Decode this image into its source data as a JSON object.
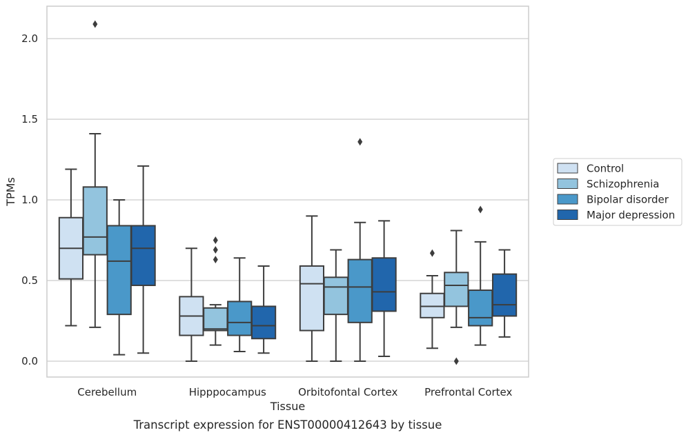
{
  "caption": "Transcript expression for ENST00000412643 by tissue",
  "chart_data": {
    "type": "box",
    "xlabel": "Tissue",
    "ylabel": "TPMs",
    "ylim": [
      -0.1,
      2.2
    ],
    "yticks": [
      0.0,
      0.5,
      1.0,
      1.5,
      2.0
    ],
    "ytick_labels": [
      "0.0",
      "0.5",
      "1.0",
      "1.5",
      "2.0"
    ],
    "grid": "horizontal",
    "legend_placement": "right, outside",
    "categories": [
      "Cerebellum",
      "Hipppocampus",
      "Orbitofontal Cortex",
      "Prefrontal Cortex"
    ],
    "series": [
      {
        "name": "Control",
        "color": "#cfe1f2",
        "boxes": [
          {
            "whislo": 0.22,
            "q1": 0.51,
            "med": 0.7,
            "q3": 0.89,
            "whishi": 1.19,
            "fliers": []
          },
          {
            "whislo": 0.0,
            "q1": 0.16,
            "med": 0.28,
            "q3": 0.4,
            "whishi": 0.7,
            "fliers": []
          },
          {
            "whislo": 0.0,
            "q1": 0.19,
            "med": 0.48,
            "q3": 0.59,
            "whishi": 0.9,
            "fliers": []
          },
          {
            "whislo": 0.08,
            "q1": 0.27,
            "med": 0.34,
            "q3": 0.42,
            "whishi": 0.53,
            "fliers": [
              0.67
            ]
          }
        ]
      },
      {
        "name": "Schizophrenia",
        "color": "#93c4de",
        "boxes": [
          {
            "whislo": 0.21,
            "q1": 0.66,
            "med": 0.77,
            "q3": 1.08,
            "whishi": 1.41,
            "fliers": [
              2.09
            ]
          },
          {
            "whislo": 0.1,
            "q1": 0.19,
            "med": 0.2,
            "q3": 0.33,
            "whishi": 0.35,
            "fliers": [
              0.63,
              0.69,
              0.75
            ]
          },
          {
            "whislo": 0.0,
            "q1": 0.29,
            "med": 0.46,
            "q3": 0.52,
            "whishi": 0.69,
            "fliers": []
          },
          {
            "whislo": 0.21,
            "q1": 0.34,
            "med": 0.47,
            "q3": 0.55,
            "whishi": 0.81,
            "fliers": [
              0.0
            ]
          }
        ]
      },
      {
        "name": "Bipolar disorder",
        "color": "#4a98c9",
        "boxes": [
          {
            "whislo": 0.04,
            "q1": 0.29,
            "med": 0.62,
            "q3": 0.84,
            "whishi": 1.0,
            "fliers": []
          },
          {
            "whislo": 0.06,
            "q1": 0.16,
            "med": 0.24,
            "q3": 0.37,
            "whishi": 0.64,
            "fliers": []
          },
          {
            "whislo": 0.0,
            "q1": 0.24,
            "med": 0.46,
            "q3": 0.63,
            "whishi": 0.86,
            "fliers": [
              1.36
            ]
          },
          {
            "whislo": 0.1,
            "q1": 0.22,
            "med": 0.27,
            "q3": 0.44,
            "whishi": 0.74,
            "fliers": [
              0.94
            ]
          }
        ]
      },
      {
        "name": "Major depression",
        "color": "#2166ac",
        "boxes": [
          {
            "whislo": 0.05,
            "q1": 0.47,
            "med": 0.7,
            "q3": 0.84,
            "whishi": 1.21,
            "fliers": []
          },
          {
            "whislo": 0.05,
            "q1": 0.14,
            "med": 0.22,
            "q3": 0.34,
            "whishi": 0.59,
            "fliers": []
          },
          {
            "whislo": 0.03,
            "q1": 0.31,
            "med": 0.43,
            "q3": 0.64,
            "whishi": 0.87,
            "fliers": []
          },
          {
            "whislo": 0.15,
            "q1": 0.28,
            "med": 0.35,
            "q3": 0.54,
            "whishi": 0.69,
            "fliers": []
          }
        ]
      }
    ]
  }
}
